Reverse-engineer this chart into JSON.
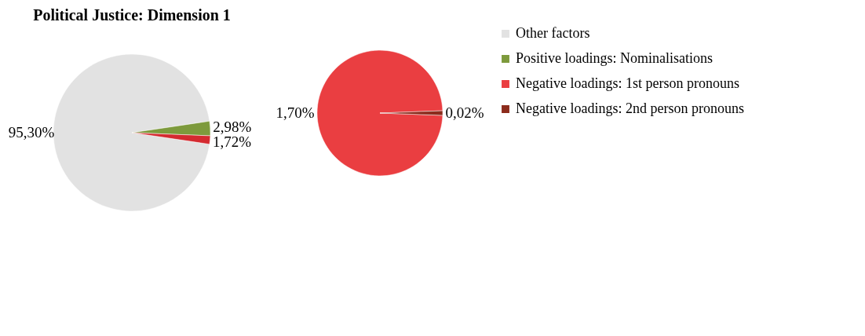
{
  "chart_data": [
    {
      "type": "pie",
      "title": "Political Justice: Dimension 1",
      "categories": [
        "Other factors",
        "Positive loadings: Nominalisations",
        null
      ],
      "values": [
        95.3,
        2.98,
        1.72
      ],
      "colors": [
        "#e2e2e2",
        "#7d9a3c",
        "#d42a30"
      ],
      "value_labels": [
        "95,30%",
        "2,98%",
        "1,72%"
      ],
      "legend": "right"
    },
    {
      "type": "pie",
      "categories": [
        "Negative loadings: 1st person pronouns",
        "Negative loadings: 2nd person pronouns"
      ],
      "values": [
        1.7,
        0.02
      ],
      "colors": [
        "#ea3e41",
        "#8c2b1c"
      ],
      "value_labels": [
        "1,70%",
        "0,02%"
      ],
      "legend": "right"
    }
  ]
}
